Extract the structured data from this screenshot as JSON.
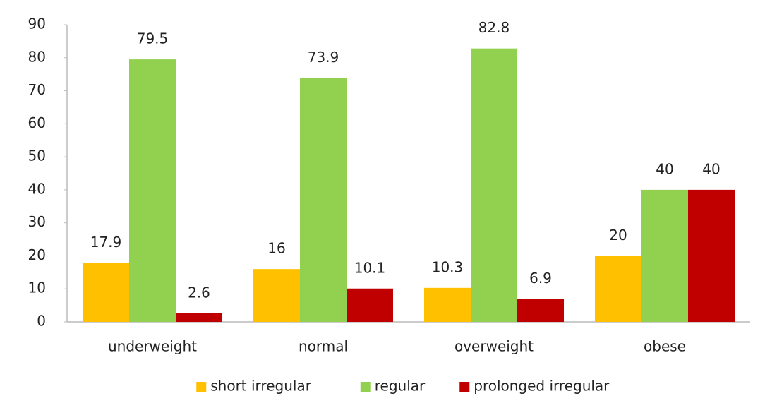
{
  "chart_data": {
    "type": "bar",
    "categories": [
      "underweight",
      "normal",
      "overweight",
      "obese"
    ],
    "series": [
      {
        "name": "short irregular",
        "color": "#ffc000",
        "values": [
          17.9,
          16,
          10.3,
          20
        ]
      },
      {
        "name": "regular",
        "color": "#92d050",
        "values": [
          79.5,
          73.9,
          82.8,
          40
        ]
      },
      {
        "name": "prolonged irregular",
        "color": "#c00000",
        "values": [
          2.6,
          10.1,
          6.9,
          40
        ]
      }
    ],
    "ylim": [
      0,
      90
    ],
    "yticks": [
      0,
      10,
      20,
      30,
      40,
      50,
      60,
      70,
      80,
      90
    ],
    "grid": false,
    "legend": "bottom"
  }
}
